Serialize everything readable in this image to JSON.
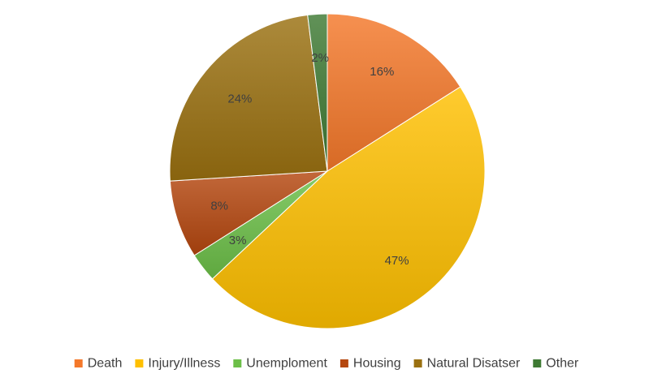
{
  "chart_data": {
    "type": "pie",
    "title": "",
    "categories": [
      "Death",
      "Injury/Illness",
      "Unemploment",
      "Housing",
      "Natural Disatser",
      "Other"
    ],
    "values": [
      16,
      47,
      3,
      8,
      24,
      2
    ],
    "labels": [
      "16%",
      "47%",
      "3%",
      "8%",
      "24%",
      "2%"
    ],
    "colors": [
      "#F4782A",
      "#FFC000",
      "#6CBF48",
      "#B5470F",
      "#9A7010",
      "#3E7A33"
    ],
    "legend_position": "bottom"
  }
}
